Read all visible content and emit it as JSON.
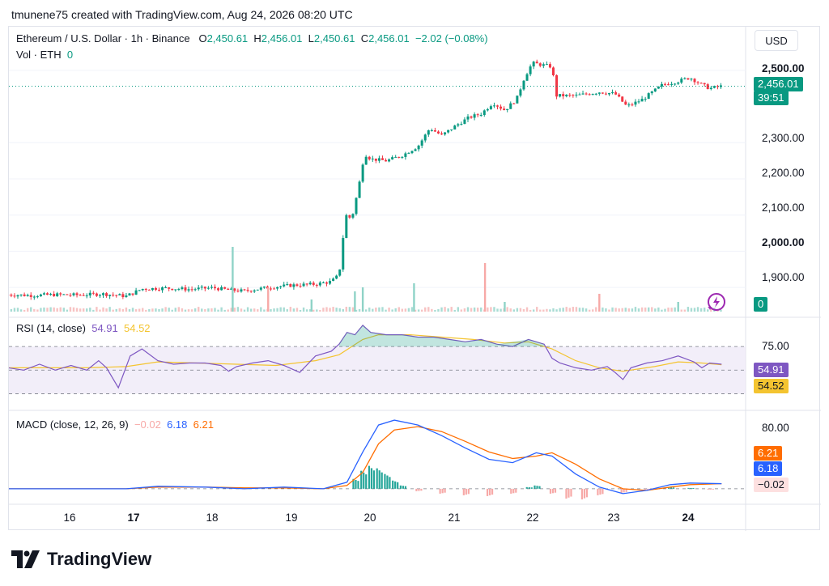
{
  "header": {
    "text": "tmunene75 created with TradingView.com, Aug 24, 2026 08:20 UTC"
  },
  "legend": {
    "symbol": "Ethereum / U.S. Dollar · 1h · Binance",
    "o_label": "O",
    "o_value": "2,450.61",
    "h_label": "H",
    "h_value": "2,456.01",
    "l_label": "L",
    "l_value": "2,450.61",
    "c_label": "C",
    "c_value": "2,456.01",
    "change": "−2.02 (−0.08%)",
    "vol_label": "Vol · ETH",
    "vol_value": "0"
  },
  "currency_button": "USD",
  "price_tag": {
    "price": "2,456.01",
    "countdown": "39:51"
  },
  "volume_tag": "0",
  "rsi": {
    "label": "RSI (14, close)",
    "value": "54.91",
    "ma_value": "54.52",
    "level_label": "75.00"
  },
  "macd": {
    "label": "MACD (close, 12, 26, 9)",
    "hist_value": "−0.02",
    "macd_value": "6.18",
    "signal_value": "6.21",
    "level_label": "80.00"
  },
  "footer": {
    "brand": "TradingView"
  },
  "colors": {
    "up": "#089981",
    "down": "#f23645",
    "rsi": "#7e57c2",
    "rsi_ma": "#f4c430",
    "macd": "#2962ff",
    "signal": "#ff6d00"
  },
  "chart_data": {
    "type": "candlestick",
    "price_axis": {
      "ticks": [
        "2,500.00",
        "2,300.00",
        "2,200.00",
        "2,100.00",
        "2,000.00",
        "1,900.00"
      ],
      "bold_ticks": [
        "2,500.00",
        "2,000.00"
      ],
      "ylim": [
        1860,
        2540
      ]
    },
    "time_axis": {
      "ticks": [
        "16",
        "17",
        "18",
        "19",
        "20",
        "21",
        "22",
        "23",
        "24"
      ],
      "bold_ticks": [
        "17",
        "24"
      ]
    },
    "price_path": [
      [
        15.3,
        1880
      ],
      [
        15.6,
        1878
      ],
      [
        15.9,
        1880
      ],
      [
        16.2,
        1879
      ],
      [
        16.5,
        1882
      ],
      [
        16.8,
        1876
      ],
      [
        17.0,
        1896
      ],
      [
        17.3,
        1898
      ],
      [
        17.6,
        1895
      ],
      [
        17.9,
        1899
      ],
      [
        18.1,
        1893
      ],
      [
        18.3,
        1890
      ],
      [
        18.6,
        1900
      ],
      [
        18.9,
        1906
      ],
      [
        19.2,
        1909
      ],
      [
        19.4,
        1916
      ],
      [
        19.5,
        1935
      ],
      [
        19.58,
        2100
      ],
      [
        19.66,
        2090
      ],
      [
        19.75,
        2180
      ],
      [
        19.82,
        2270
      ],
      [
        19.9,
        2255
      ],
      [
        20.1,
        2250
      ],
      [
        20.3,
        2265
      ],
      [
        20.5,
        2290
      ],
      [
        20.65,
        2340
      ],
      [
        20.8,
        2320
      ],
      [
        21.0,
        2350
      ],
      [
        21.15,
        2370
      ],
      [
        21.3,
        2380
      ],
      [
        21.45,
        2410
      ],
      [
        21.6,
        2390
      ],
      [
        21.75,
        2420
      ],
      [
        21.85,
        2480
      ],
      [
        21.95,
        2520
      ],
      [
        22.2,
        2510
      ],
      [
        22.25,
        2430
      ],
      [
        22.5,
        2430
      ],
      [
        22.8,
        2440
      ],
      [
        23.0,
        2435
      ],
      [
        23.15,
        2400
      ],
      [
        23.35,
        2420
      ],
      [
        23.6,
        2460
      ],
      [
        23.8,
        2470
      ],
      [
        23.95,
        2480
      ],
      [
        24.1,
        2460
      ],
      [
        24.2,
        2450
      ],
      [
        24.35,
        2456
      ]
    ],
    "volume_spikes": [
      [
        18.15,
        80
      ],
      [
        18.6,
        30
      ],
      [
        19.15,
        15
      ],
      [
        19.7,
        25
      ],
      [
        19.8,
        30
      ],
      [
        20.45,
        35
      ],
      [
        21.35,
        60
      ],
      [
        21.6,
        12
      ],
      [
        22.8,
        22
      ],
      [
        23.8,
        12
      ]
    ],
    "rsi": {
      "ylim": [
        20,
        90
      ],
      "upper_band": 70,
      "lower_band": 30,
      "middle": 50,
      "series": [
        [
          15.3,
          52
        ],
        [
          15.5,
          50
        ],
        [
          15.7,
          55
        ],
        [
          15.9,
          50
        ],
        [
          16.1,
          54
        ],
        [
          16.3,
          50
        ],
        [
          16.45,
          58
        ],
        [
          16.55,
          52
        ],
        [
          16.7,
          35
        ],
        [
          16.85,
          62
        ],
        [
          17.0,
          68
        ],
        [
          17.2,
          58
        ],
        [
          17.4,
          55
        ],
        [
          17.6,
          56
        ],
        [
          17.8,
          56
        ],
        [
          18.0,
          54
        ],
        [
          18.1,
          49
        ],
        [
          18.2,
          53
        ],
        [
          18.4,
          56
        ],
        [
          18.6,
          58
        ],
        [
          18.8,
          54
        ],
        [
          19.0,
          48
        ],
        [
          19.2,
          62
        ],
        [
          19.4,
          66
        ],
        [
          19.5,
          72
        ],
        [
          19.6,
          82
        ],
        [
          19.7,
          80
        ],
        [
          19.8,
          88
        ],
        [
          19.9,
          82
        ],
        [
          20.1,
          80
        ],
        [
          20.3,
          80
        ],
        [
          20.5,
          78
        ],
        [
          20.7,
          78
        ],
        [
          20.9,
          76
        ],
        [
          21.1,
          74
        ],
        [
          21.3,
          76
        ],
        [
          21.5,
          72
        ],
        [
          21.7,
          70
        ],
        [
          21.9,
          76
        ],
        [
          22.1,
          72
        ],
        [
          22.2,
          60
        ],
        [
          22.3,
          56
        ],
        [
          22.5,
          52
        ],
        [
          22.7,
          50
        ],
        [
          22.9,
          53
        ],
        [
          23.0,
          48
        ],
        [
          23.1,
          42
        ],
        [
          23.2,
          52
        ],
        [
          23.4,
          56
        ],
        [
          23.6,
          58
        ],
        [
          23.8,
          62
        ],
        [
          24.0,
          57
        ],
        [
          24.1,
          52
        ],
        [
          24.2,
          56
        ],
        [
          24.35,
          55
        ]
      ],
      "ma_series": [
        [
          15.3,
          52
        ],
        [
          15.8,
          52
        ],
        [
          16.3,
          52
        ],
        [
          16.8,
          53
        ],
        [
          17.2,
          57
        ],
        [
          17.7,
          56
        ],
        [
          18.2,
          55
        ],
        [
          18.7,
          54
        ],
        [
          19.2,
          58
        ],
        [
          19.5,
          63
        ],
        [
          19.8,
          76
        ],
        [
          20.0,
          80
        ],
        [
          20.4,
          80
        ],
        [
          20.8,
          78
        ],
        [
          21.2,
          76
        ],
        [
          21.6,
          73
        ],
        [
          21.9,
          74
        ],
        [
          22.2,
          68
        ],
        [
          22.5,
          58
        ],
        [
          22.8,
          52
        ],
        [
          23.1,
          49
        ],
        [
          23.5,
          53
        ],
        [
          23.8,
          57
        ],
        [
          24.1,
          56
        ],
        [
          24.35,
          54.5
        ]
      ]
    },
    "macd": {
      "ylim": [
        -15,
        90
      ],
      "macd_series": [
        [
          15.3,
          0
        ],
        [
          16.0,
          0
        ],
        [
          16.8,
          0
        ],
        [
          17.2,
          3
        ],
        [
          17.8,
          2
        ],
        [
          18.3,
          0
        ],
        [
          18.8,
          2
        ],
        [
          19.3,
          0
        ],
        [
          19.6,
          8
        ],
        [
          19.8,
          45
        ],
        [
          20.0,
          78
        ],
        [
          20.2,
          84
        ],
        [
          20.5,
          78
        ],
        [
          20.8,
          65
        ],
        [
          21.1,
          50
        ],
        [
          21.4,
          36
        ],
        [
          21.7,
          32
        ],
        [
          22.0,
          44
        ],
        [
          22.2,
          40
        ],
        [
          22.5,
          18
        ],
        [
          22.8,
          2
        ],
        [
          23.1,
          -6
        ],
        [
          23.4,
          -2
        ],
        [
          23.7,
          5
        ],
        [
          23.95,
          7
        ],
        [
          24.35,
          6.18
        ]
      ],
      "signal_series": [
        [
          15.3,
          0
        ],
        [
          16.0,
          0
        ],
        [
          16.8,
          0
        ],
        [
          17.2,
          2
        ],
        [
          17.8,
          2
        ],
        [
          18.3,
          1
        ],
        [
          18.8,
          1
        ],
        [
          19.3,
          0
        ],
        [
          19.6,
          4
        ],
        [
          19.8,
          20
        ],
        [
          20.0,
          55
        ],
        [
          20.2,
          72
        ],
        [
          20.5,
          76
        ],
        [
          20.8,
          70
        ],
        [
          21.1,
          58
        ],
        [
          21.4,
          45
        ],
        [
          21.7,
          37
        ],
        [
          22.0,
          40
        ],
        [
          22.2,
          44
        ],
        [
          22.5,
          30
        ],
        [
          22.8,
          12
        ],
        [
          23.1,
          0
        ],
        [
          23.4,
          -2
        ],
        [
          23.7,
          2
        ],
        [
          23.95,
          5
        ],
        [
          24.35,
          6.21
        ]
      ],
      "histogram": [
        [
          19.7,
          12
        ],
        [
          19.8,
          22
        ],
        [
          19.9,
          28
        ],
        [
          20.0,
          25
        ],
        [
          20.1,
          18
        ],
        [
          20.2,
          10
        ],
        [
          20.3,
          4
        ],
        [
          20.5,
          -3
        ],
        [
          20.8,
          -6
        ],
        [
          21.1,
          -8
        ],
        [
          21.4,
          -9
        ],
        [
          21.7,
          -6
        ],
        [
          21.9,
          2
        ],
        [
          22.0,
          4
        ],
        [
          22.2,
          -6
        ],
        [
          22.4,
          -12
        ],
        [
          22.6,
          -13
        ],
        [
          22.8,
          -8
        ],
        [
          23.1,
          -5
        ],
        [
          23.4,
          -1
        ],
        [
          23.7,
          2
        ],
        [
          23.95,
          1
        ],
        [
          24.2,
          -0.02
        ]
      ]
    }
  }
}
